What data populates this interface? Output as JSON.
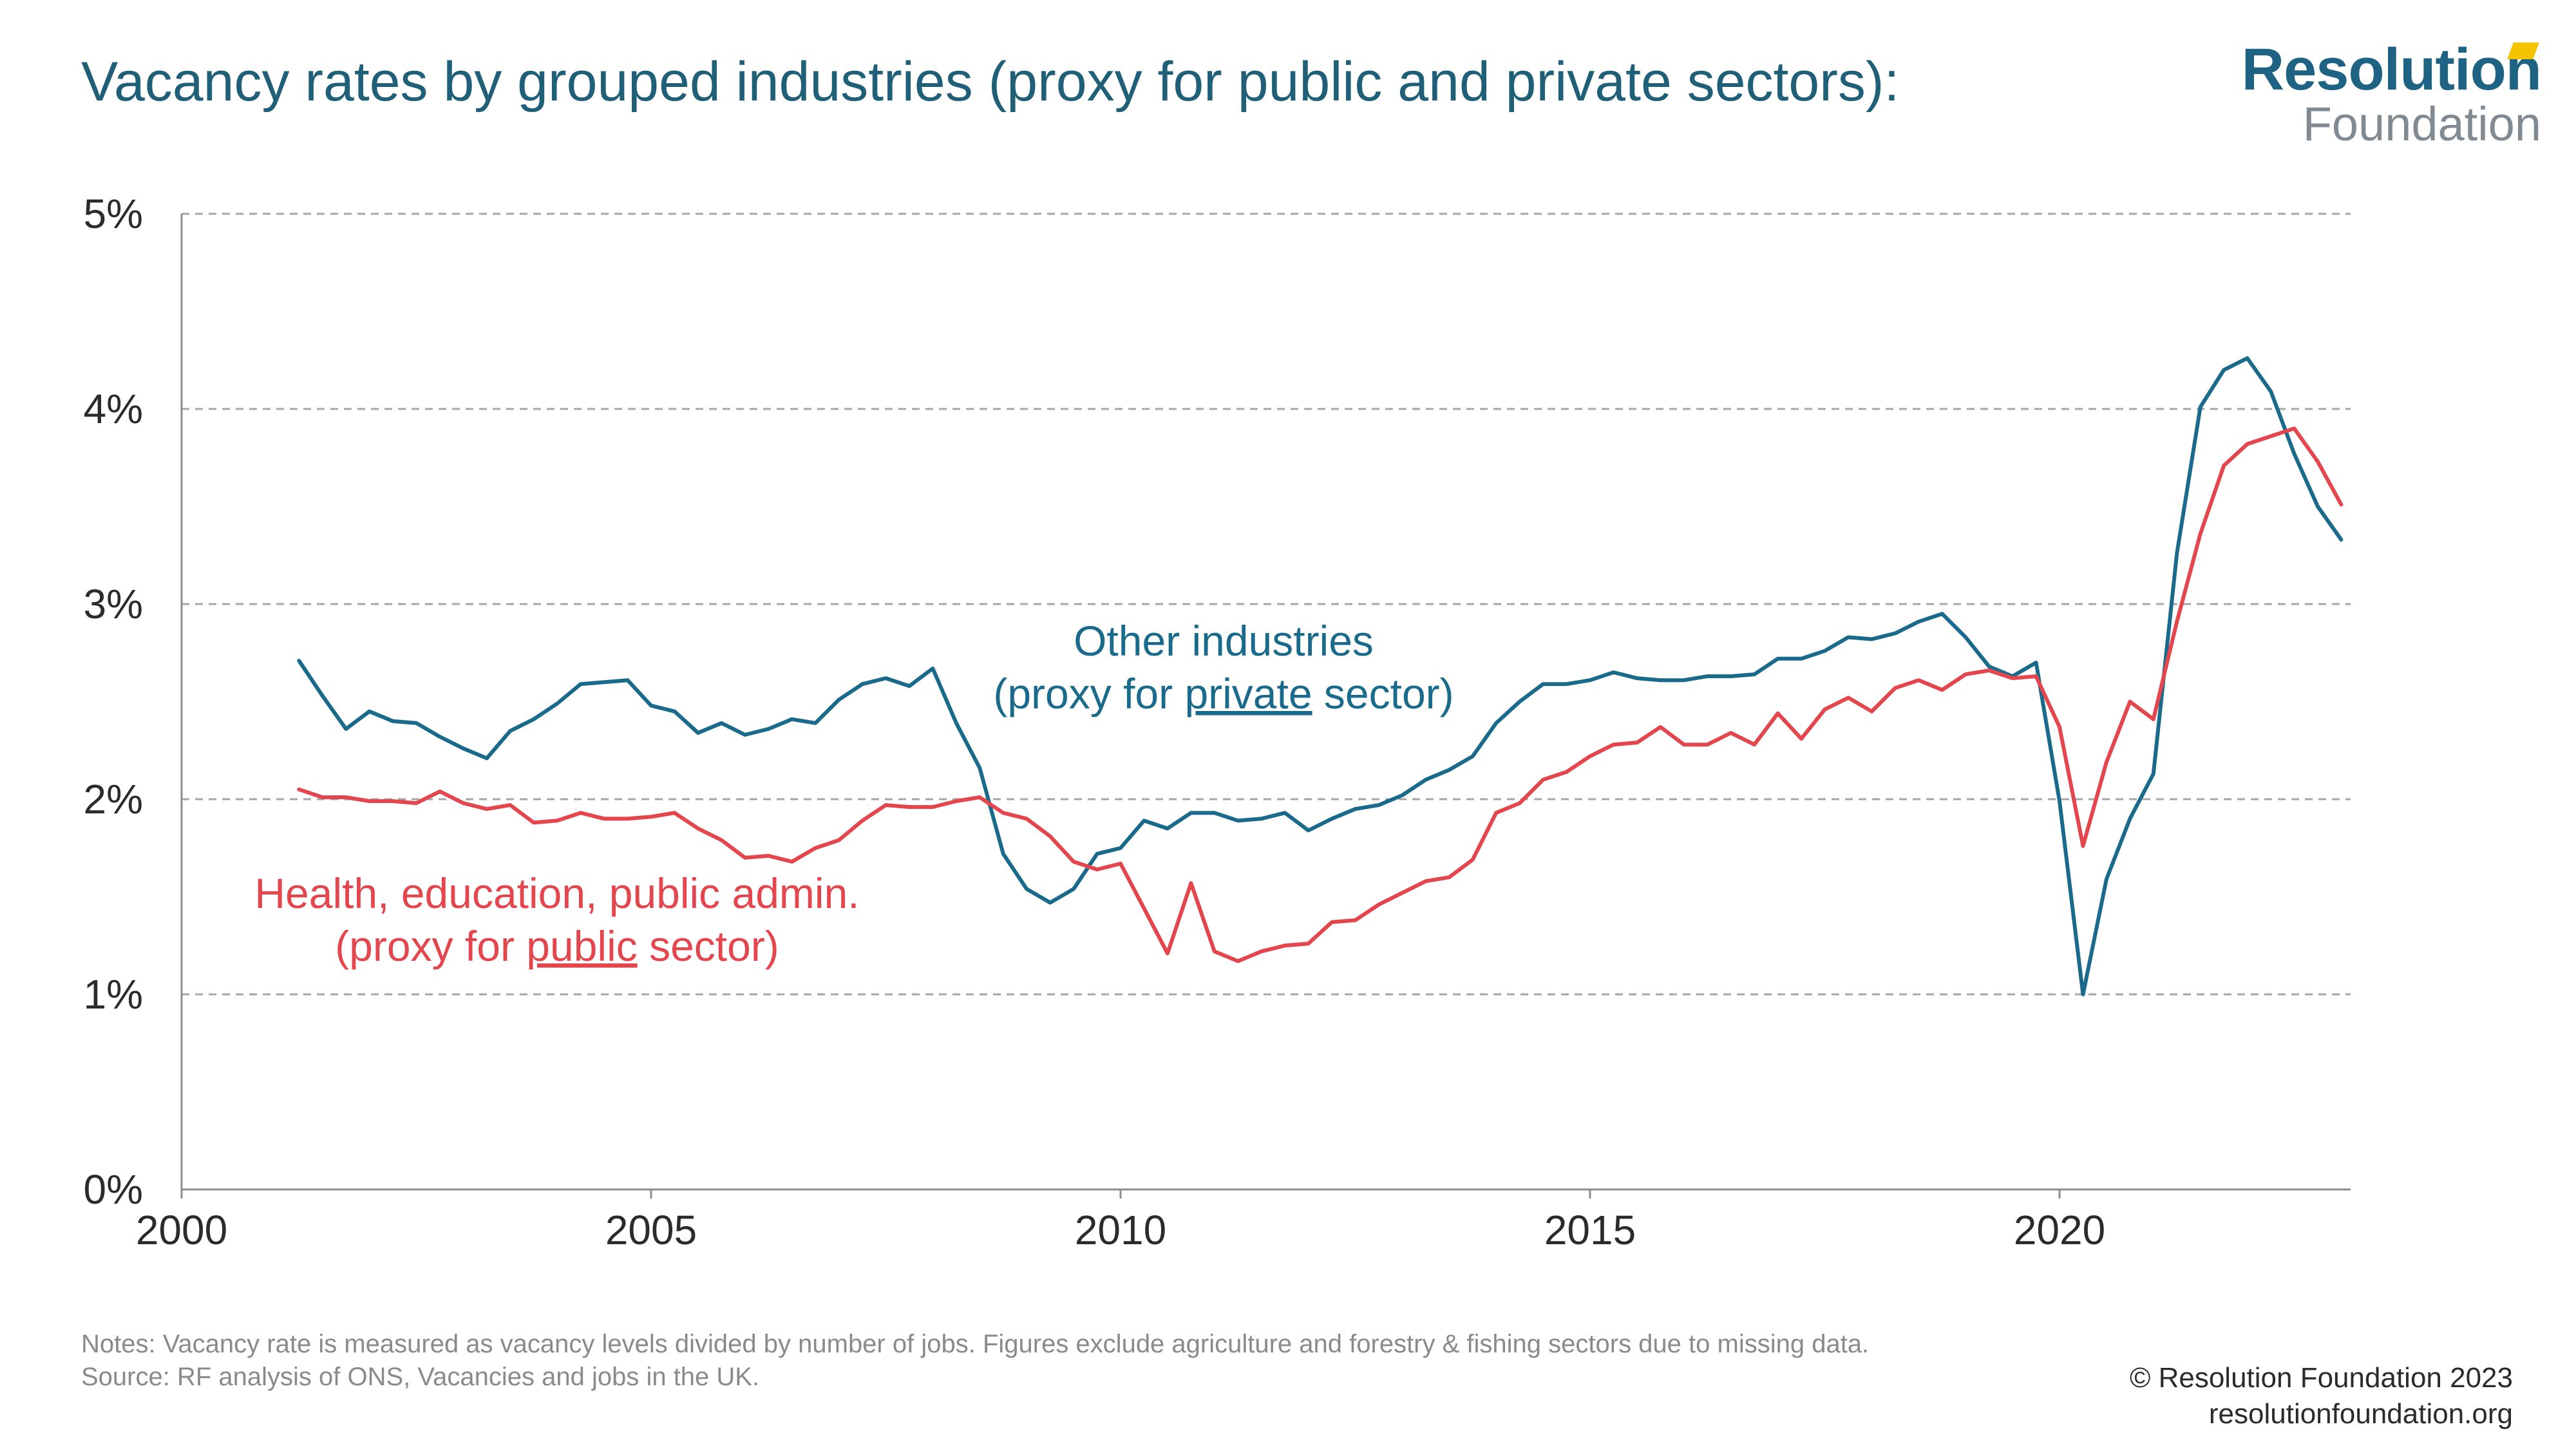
{
  "header": {
    "title": "Vacancy rates by grouped industries (proxy for public and private sectors):",
    "logo_line1": "Resolution",
    "logo_line2": "Foundation"
  },
  "colors": {
    "private": "#1a6a8b",
    "public": "#e3474d",
    "title": "#1f5f78",
    "grid": "#a6a6a6",
    "accent": "#f3c300"
  },
  "chart_data": {
    "type": "line",
    "xlabel": "",
    "ylabel": "",
    "xlim": [
      2000,
      2023.1
    ],
    "ylim": [
      0,
      5
    ],
    "x_ticks": [
      2000,
      2005,
      2010,
      2015,
      2020
    ],
    "x_tick_labels": [
      "2000",
      "2005",
      "2010",
      "2015",
      "2020"
    ],
    "y_ticks": [
      0,
      1,
      2,
      3,
      4,
      5
    ],
    "y_tick_labels": [
      "0%",
      "1%",
      "2%",
      "3%",
      "4%",
      "5%"
    ],
    "grid": "horizontal dashed",
    "start_year": 2001.25,
    "step_years": 0.25,
    "series": [
      {
        "key": "private",
        "label_line1": "Other industries",
        "label_line2_before": "(proxy for ",
        "label_line2_emph": "private",
        "label_line2_after": " sector)",
        "values": [
          2.71,
          2.53,
          2.36,
          2.45,
          2.4,
          2.39,
          2.32,
          2.26,
          2.21,
          2.35,
          2.41,
          2.49,
          2.59,
          2.6,
          2.61,
          2.48,
          2.45,
          2.34,
          2.39,
          2.33,
          2.36,
          2.41,
          2.39,
          2.51,
          2.59,
          2.62,
          2.58,
          2.67,
          2.39,
          2.16,
          1.72,
          1.54,
          1.47,
          1.54,
          1.72,
          1.75,
          1.89,
          1.85,
          1.93,
          1.93,
          1.89,
          1.9,
          1.93,
          1.84,
          1.9,
          1.95,
          1.97,
          2.02,
          2.1,
          2.15,
          2.22,
          2.39,
          2.5,
          2.59,
          2.59,
          2.61,
          2.65,
          2.62,
          2.61,
          2.61,
          2.63,
          2.63,
          2.64,
          2.72,
          2.72,
          2.76,
          2.83,
          2.82,
          2.85,
          2.91,
          2.95,
          2.83,
          2.68,
          2.63,
          2.7,
          1.99,
          1.0,
          1.59,
          1.9,
          2.13,
          3.26,
          4.01,
          4.2,
          4.26,
          4.09,
          3.77,
          3.5,
          3.33
        ]
      },
      {
        "key": "public",
        "label_line1": "Health, education, public admin.",
        "label_line2_before": "(proxy for ",
        "label_line2_emph": "public",
        "label_line2_after": " sector)",
        "values": [
          2.05,
          2.01,
          2.01,
          1.99,
          1.99,
          1.98,
          2.04,
          1.98,
          1.95,
          1.97,
          1.88,
          1.89,
          1.93,
          1.9,
          1.9,
          1.91,
          1.93,
          1.85,
          1.79,
          1.7,
          1.71,
          1.68,
          1.75,
          1.79,
          1.89,
          1.97,
          1.96,
          1.96,
          1.99,
          2.01,
          1.93,
          1.9,
          1.81,
          1.68,
          1.64,
          1.67,
          1.44,
          1.21,
          1.57,
          1.22,
          1.17,
          1.22,
          1.25,
          1.26,
          1.37,
          1.38,
          1.46,
          1.52,
          1.58,
          1.6,
          1.69,
          1.93,
          1.98,
          2.1,
          2.14,
          2.22,
          2.28,
          2.29,
          2.37,
          2.28,
          2.28,
          2.34,
          2.28,
          2.44,
          2.31,
          2.46,
          2.52,
          2.45,
          2.57,
          2.61,
          2.56,
          2.64,
          2.66,
          2.62,
          2.63,
          2.37,
          1.76,
          2.19,
          2.5,
          2.41,
          2.91,
          3.36,
          3.71,
          3.82,
          3.86,
          3.9,
          3.73,
          3.51
        ]
      }
    ]
  },
  "notes": {
    "line1": "Notes:  Vacancy rate is measured as vacancy levels divided by number of jobs. Figures exclude agriculture and forestry & fishing sectors due to missing data.",
    "line2": "Source: RF analysis of ONS, Vacancies and jobs in the UK."
  },
  "footer": {
    "copyright": "© Resolution Foundation 2023",
    "site": "resolutionfoundation.org"
  }
}
